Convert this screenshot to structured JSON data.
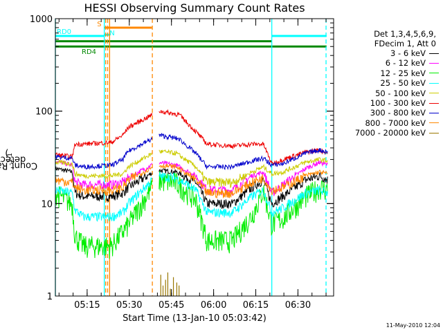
{
  "chart_data": {
    "type": "line",
    "title": "HESSI Observing Summary Count Rates",
    "xlabel": "Start Time (13-Jan-10 05:03:42)",
    "ylabel": "Count Rate (s",
    "ylabel_sup": "-1",
    "ylabel_tail": " detector",
    "ylabel_tail_sup": "-1",
    "ylabel_close": ")",
    "yscale": "log",
    "ylim": [
      1,
      1000
    ],
    "yticks": [
      {
        "v": 1,
        "label": "1"
      },
      {
        "v": 10,
        "label": "10"
      },
      {
        "v": 100,
        "label": "100"
      },
      {
        "v": 1000,
        "label": "1000"
      }
    ],
    "xlim": [
      0,
      99
    ],
    "xticks": [
      {
        "v": 11.3,
        "label": "05:15"
      },
      {
        "v": 26.3,
        "label": "05:30"
      },
      {
        "v": 41.3,
        "label": "05:45"
      },
      {
        "v": 56.3,
        "label": "06:00"
      },
      {
        "v": 71.3,
        "label": "06:15"
      },
      {
        "v": 86.3,
        "label": "06:30"
      }
    ],
    "minor_step_min": 5,
    "legend_header": [
      "Det 1,3,4,5,6,9,",
      "FDecim 1, Att 0"
    ],
    "legend_placement": "right",
    "grid": false,
    "series": [
      {
        "name": "3 - 6 keV",
        "color": "#000000",
        "x": [
          0,
          6,
          7,
          10,
          20,
          24,
          26,
          36,
          43,
          50,
          54,
          63,
          70,
          74,
          77,
          81,
          89,
          94,
          97
        ],
        "y": [
          24,
          22,
          13,
          12,
          12,
          13,
          15,
          23,
          22,
          17,
          10,
          10,
          15,
          18,
          10,
          12,
          18,
          20,
          18
        ]
      },
      {
        "name": "6 - 12 keV",
        "color": "#ff00ff",
        "x": [
          0,
          6,
          7,
          10,
          20,
          24,
          26,
          36,
          43,
          50,
          54,
          63,
          70,
          74,
          77,
          81,
          89,
          94,
          97
        ],
        "y": [
          29,
          26,
          17,
          16,
          16,
          17,
          19,
          28,
          26,
          20,
          14,
          14,
          20,
          22,
          13,
          16,
          24,
          28,
          26
        ]
      },
      {
        "name": "12 - 25 keV",
        "color": "#00ee00",
        "x": [
          0,
          6,
          7,
          10,
          20,
          24,
          26,
          36,
          43,
          50,
          54,
          63,
          70,
          74,
          77,
          81,
          89,
          94,
          97
        ],
        "y": [
          13,
          10,
          4.5,
          3.5,
          3.5,
          5,
          6,
          18,
          17,
          11,
          4,
          4,
          7.5,
          14,
          6,
          7,
          12,
          15,
          14
        ]
      },
      {
        "name": "25 - 50 keV",
        "color": "#00ffff",
        "x": [
          0,
          6,
          7,
          10,
          20,
          24,
          26,
          36,
          43,
          50,
          54,
          63,
          70,
          74,
          77,
          81,
          89,
          94,
          97
        ],
        "y": [
          14,
          13,
          8.5,
          7.2,
          7.2,
          8,
          10,
          20,
          19,
          14,
          8,
          8,
          12,
          14,
          8,
          9,
          13,
          14,
          13
        ]
      },
      {
        "name": "50 - 100 keV",
        "color": "#cccc00",
        "x": [
          0,
          6,
          7,
          10,
          20,
          24,
          26,
          36,
          43,
          50,
          54,
          63,
          70,
          74,
          77,
          81,
          89,
          94,
          97
        ],
        "y": [
          28,
          27,
          21,
          20,
          20,
          21,
          25,
          37,
          35,
          25,
          17,
          17,
          22,
          25,
          21,
          22,
          28,
          30,
          29
        ]
      },
      {
        "name": "100 - 300 keV",
        "color": "#ee0000",
        "x": [
          0,
          6,
          7,
          10,
          20,
          24,
          26,
          37,
          44,
          50,
          54,
          63,
          70,
          74,
          77,
          81,
          89,
          94,
          97
        ],
        "y": [
          34,
          32,
          44,
          44,
          46,
          55,
          67,
          100,
          92,
          60,
          44,
          42,
          44,
          44,
          27,
          30,
          36,
          38,
          35
        ]
      },
      {
        "name": "300 - 800 keV",
        "color": "#0000cc",
        "x": [
          0,
          6,
          7,
          10,
          20,
          24,
          26,
          37,
          44,
          50,
          54,
          63,
          70,
          74,
          77,
          81,
          89,
          94,
          97
        ],
        "y": [
          32,
          31,
          26,
          25,
          26,
          30,
          37,
          55,
          50,
          35,
          25,
          25,
          29,
          31,
          26,
          27,
          35,
          38,
          36
        ]
      },
      {
        "name": "800 - 7000 keV",
        "color": "#ff8800",
        "x": [
          0,
          6,
          7,
          10,
          20,
          24,
          26,
          36,
          43,
          50,
          54,
          63,
          70,
          74,
          77,
          81,
          89,
          94,
          97
        ],
        "y": [
          18,
          17,
          15,
          14,
          14,
          15,
          18,
          26,
          25,
          18,
          13,
          13,
          17,
          19,
          14,
          15,
          20,
          22,
          21
        ]
      },
      {
        "name": "7000 - 20000 keV",
        "color": "#997700",
        "x": [
          37.5,
          38.3,
          39.2,
          40.0,
          40.9,
          42.0,
          43.2,
          44.0
        ],
        "y": [
          1.7,
          1.3,
          1.5,
          1.8,
          1.2,
          1.6,
          1.4,
          1.3
        ]
      }
    ],
    "gap": [
      34.5,
      36.8
    ],
    "flags": [
      {
        "label": "RD0",
        "color": "#00ffff",
        "y": 650,
        "segments": [
          [
            0,
            17.5
          ],
          [
            77,
            96.5
          ]
        ]
      },
      {
        "label": "S",
        "color": "#ff8800",
        "y": 800,
        "segments": [
          [
            17.3,
            34.3
          ]
        ]
      },
      {
        "label": "N",
        "color": "#00ffff",
        "y": 670,
        "segments": [
          [
            17.3,
            19.5
          ]
        ]
      },
      {
        "label": "RD4",
        "color": "#008800",
        "y": 500,
        "segments": [
          [
            0,
            77
          ],
          [
            77,
            96.5
          ]
        ]
      }
    ],
    "flag_green_upper": {
      "color": "#008800",
      "y": 570,
      "segments": [
        [
          0,
          77
        ]
      ]
    },
    "vlines": [
      {
        "x": 0,
        "color": "#00ffff",
        "style": "solid"
      },
      {
        "x": 17.4,
        "color": "#00ffff",
        "style": "solid"
      },
      {
        "x": 17.9,
        "color": "#ff8800",
        "style": "dashed"
      },
      {
        "x": 18.6,
        "color": "#ff8800",
        "style": "dashed"
      },
      {
        "x": 19.3,
        "color": "#ff8800",
        "style": "solid"
      },
      {
        "x": 34.5,
        "color": "#ff8800",
        "style": "dashed"
      },
      {
        "x": 77.0,
        "color": "#00ffff",
        "style": "solid"
      },
      {
        "x": 96.3,
        "color": "#00ffff",
        "style": "dashed"
      }
    ]
  },
  "footer": {
    "timestamp": "11-May-2010 12:04"
  }
}
